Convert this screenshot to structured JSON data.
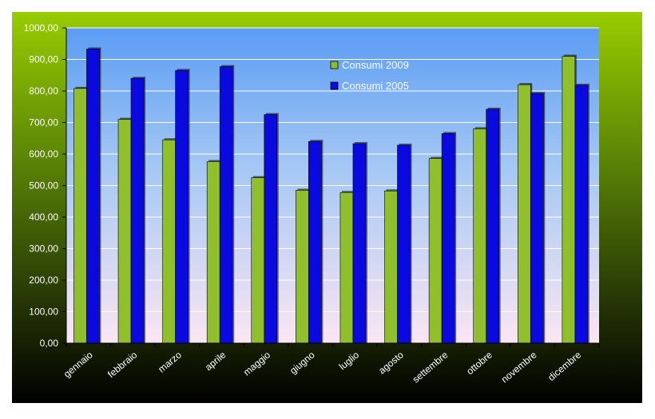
{
  "chart_data": {
    "type": "bar",
    "categories": [
      "gennaio",
      "febbraio",
      "marzo",
      "aprile",
      "maggio",
      "giugno",
      "luglio",
      "agosto",
      "settembre",
      "ottobre",
      "novembre",
      "dicembre"
    ],
    "series": [
      {
        "name": "Consumi 2009",
        "color": "#8fbf2a",
        "values": [
          808,
          710,
          645,
          576,
          525,
          485,
          478,
          483,
          586,
          680,
          820,
          910
        ]
      },
      {
        "name": "Consumi 2005",
        "color": "#0a0ae0",
        "values": [
          933,
          840,
          865,
          877,
          725,
          640,
          633,
          628,
          665,
          742,
          792,
          818
        ]
      }
    ],
    "y_ticks": [
      "0,00",
      "100,00",
      "200,00",
      "300,00",
      "400,00",
      "500,00",
      "600,00",
      "700,00",
      "800,00",
      "900,00",
      "1000,00"
    ],
    "ylim": [
      0,
      1000
    ],
    "grid": true,
    "legend_position": "top-right"
  }
}
